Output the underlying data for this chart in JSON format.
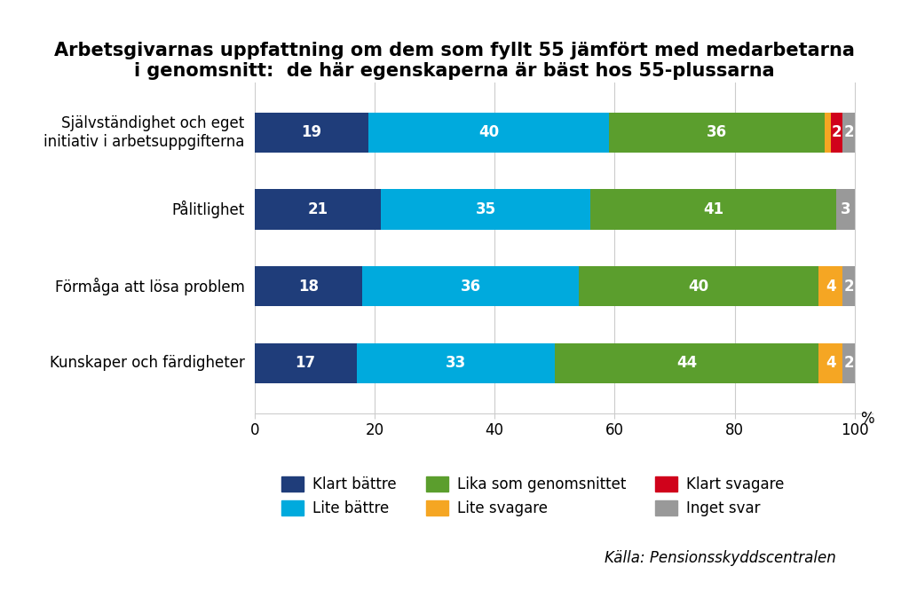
{
  "title_line1": "Arbetsgivarnas uppfattning om dem som fyllt 55 jämfört med medarbetarna",
  "title_line2": "i genomsnitt:  de här egenskaperna är bäst hos 55-plussarna",
  "categories": [
    "Kunskaper och färdigheter",
    "Förmåga att lösa problem",
    "Pålitlighet",
    "Självständighet och eget\ninitiativ i arbetsuppgifterna"
  ],
  "segments": {
    "Klart bättre": [
      17,
      18,
      21,
      19
    ],
    "Lite bättre": [
      33,
      36,
      35,
      40
    ],
    "Lika som genomsnittet": [
      44,
      40,
      41,
      36
    ],
    "Lite svagare": [
      4,
      4,
      0,
      1
    ],
    "Klart svagare": [
      0,
      0,
      0,
      2
    ],
    "Inget svar": [
      2,
      2,
      3,
      2
    ]
  },
  "colors": {
    "Klart bättre": "#1F3D7A",
    "Lite bättre": "#00AADD",
    "Lika som genomsnittet": "#5B9E2D",
    "Lite svagare": "#F5A623",
    "Klart svagare": "#D0021B",
    "Inget svar": "#999999"
  },
  "legend_order": [
    "Klart bättre",
    "Lite bättre",
    "Lika som genomsnittet",
    "Lite svagare",
    "Klart svagare",
    "Inget svar"
  ],
  "source": "Källa: Pensionsskyddscentralen",
  "xlim": [
    0,
    103
  ],
  "xticks": [
    0,
    20,
    40,
    60,
    80,
    100
  ],
  "bar_height": 0.52,
  "figsize": [
    10.24,
    6.65
  ],
  "dpi": 100,
  "title_fontsize": 15,
  "bar_label_fontsize": 12,
  "tick_fontsize": 12,
  "legend_fontsize": 12,
  "source_fontsize": 12,
  "ytick_fontsize": 12
}
